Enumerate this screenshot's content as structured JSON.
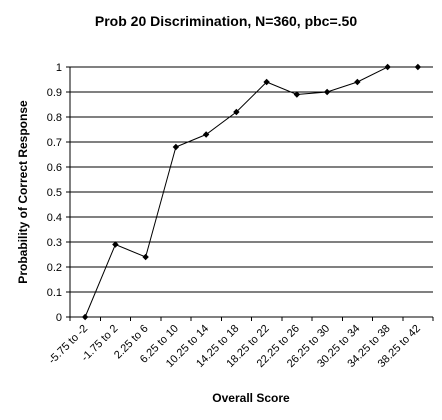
{
  "chart_data": {
    "type": "line",
    "title": "Prob 20 Discrimination, N=360, pbc=.50",
    "xlabel": "Overall Score",
    "ylabel": "Probability of Correct Response",
    "categories": [
      "-5.75 to -2",
      "-1.75 to 2",
      "2.25 to 6",
      "6.25 to 10",
      "10.25 to 14",
      "14.25 to 18",
      "18.25 to 22",
      "22.25 to 26",
      "26.25 to 30",
      "30.25 to 34",
      "34.25 to 38",
      "38.25 to 42"
    ],
    "values": [
      0,
      0.29,
      0.24,
      0.68,
      0.73,
      0.82,
      0.94,
      0.89,
      0.9,
      0.94,
      1.0,
      1.0
    ],
    "ylim": [
      0,
      1
    ],
    "yticks": [
      "0",
      "0.1",
      "0.2",
      "0.3",
      "0.4",
      "0.5",
      "0.6",
      "0.7",
      "0.8",
      "0.9",
      "1"
    ],
    "grid": true,
    "legend": "none"
  }
}
